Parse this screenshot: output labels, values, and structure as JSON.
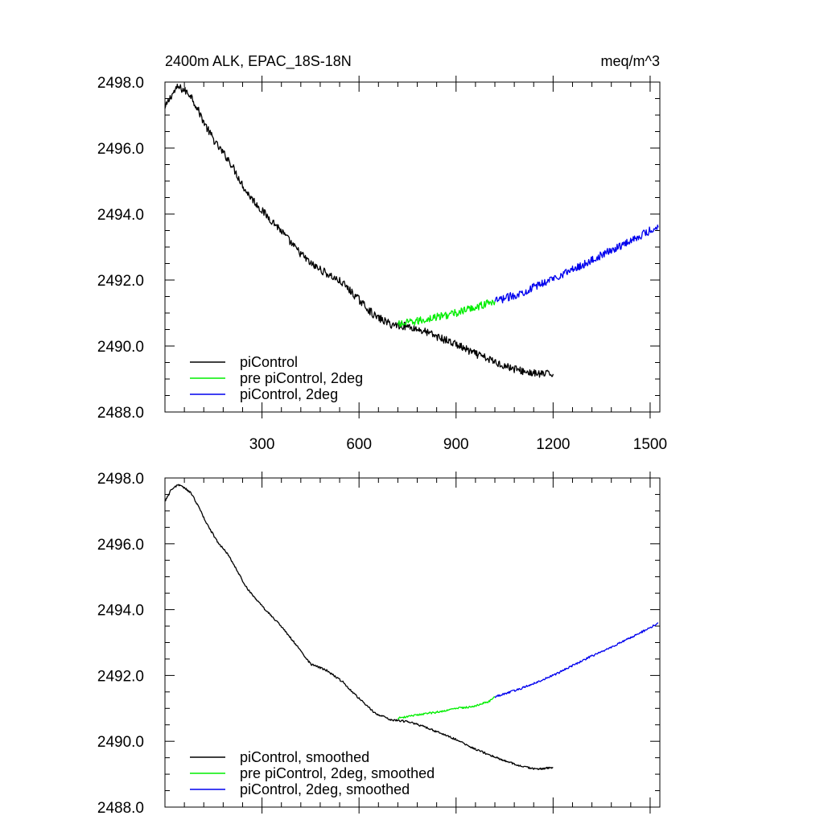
{
  "title_left": "2400m ALK, EPAC_18S-18N",
  "title_right": "meq/m^3",
  "colors": {
    "black": "#000000",
    "green": "#00ee00",
    "blue": "#0000ee"
  },
  "chart_data": [
    {
      "type": "line",
      "panel": "top",
      "xlim": [
        0,
        1530
      ],
      "ylim": [
        2488.0,
        2498.0
      ],
      "xticks": [
        300,
        600,
        900,
        1200,
        1500
      ],
      "xtick_labels": [
        "300",
        "600",
        "900",
        "1200",
        "1500"
      ],
      "yticks": [
        2488.0,
        2490.0,
        2492.0,
        2494.0,
        2496.0,
        2498.0
      ],
      "ytick_labels": [
        "2488.0",
        "2490.0",
        "2492.0",
        "2494.0",
        "2496.0",
        "2498.0"
      ],
      "noise": 0.12,
      "series": [
        {
          "name": "piControl",
          "color": "#000000",
          "points": [
            [
              0,
              2497.2
            ],
            [
              20,
              2497.6
            ],
            [
              40,
              2497.85
            ],
            [
              60,
              2497.75
            ],
            [
              80,
              2497.6
            ],
            [
              100,
              2497.2
            ],
            [
              130,
              2496.6
            ],
            [
              160,
              2496.1
            ],
            [
              200,
              2495.6
            ],
            [
              250,
              2494.7
            ],
            [
              300,
              2494.1
            ],
            [
              350,
              2493.6
            ],
            [
              400,
              2493.0
            ],
            [
              450,
              2492.5
            ],
            [
              500,
              2492.2
            ],
            [
              550,
              2491.9
            ],
            [
              600,
              2491.4
            ],
            [
              650,
              2490.9
            ],
            [
              700,
              2490.65
            ],
            [
              750,
              2490.6
            ],
            [
              800,
              2490.45
            ],
            [
              850,
              2490.25
            ],
            [
              900,
              2490.05
            ],
            [
              950,
              2489.8
            ],
            [
              1000,
              2489.6
            ],
            [
              1050,
              2489.4
            ],
            [
              1100,
              2489.25
            ],
            [
              1150,
              2489.15
            ],
            [
              1200,
              2489.15
            ]
          ]
        },
        {
          "name": "pre piControl, 2deg",
          "color": "#00ee00",
          "points": [
            [
              720,
              2490.65
            ],
            [
              780,
              2490.75
            ],
            [
              850,
              2490.9
            ],
            [
              900,
              2491.0
            ],
            [
              950,
              2491.15
            ],
            [
              1000,
              2491.3
            ],
            [
              1020,
              2491.35
            ]
          ]
        },
        {
          "name": "piControl, 2deg",
          "color": "#0000ee",
          "points": [
            [
              1020,
              2491.35
            ],
            [
              1100,
              2491.6
            ],
            [
              1200,
              2492.05
            ],
            [
              1300,
              2492.5
            ],
            [
              1400,
              2493.0
            ],
            [
              1500,
              2493.5
            ],
            [
              1525,
              2493.6
            ]
          ]
        }
      ],
      "legend": [
        "piControl",
        "pre piControl, 2deg",
        "piControl, 2deg"
      ],
      "legend_position": "bottom-left"
    },
    {
      "type": "line",
      "panel": "bottom",
      "xlim": [
        0,
        1530
      ],
      "ylim": [
        2488.0,
        2498.0
      ],
      "xticks": [
        300,
        600,
        900,
        1200,
        1500
      ],
      "yticks": [
        2488.0,
        2490.0,
        2492.0,
        2494.0,
        2496.0,
        2498.0
      ],
      "ytick_labels": [
        "2488.0",
        "2490.0",
        "2492.0",
        "2494.0",
        "2496.0",
        "2498.0"
      ],
      "noise": 0.03,
      "series": [
        {
          "name": "piControl, smoothed",
          "color": "#000000",
          "points": [
            [
              0,
              2497.3
            ],
            [
              20,
              2497.65
            ],
            [
              40,
              2497.8
            ],
            [
              60,
              2497.7
            ],
            [
              80,
              2497.55
            ],
            [
              100,
              2497.2
            ],
            [
              130,
              2496.6
            ],
            [
              160,
              2496.1
            ],
            [
              200,
              2495.6
            ],
            [
              250,
              2494.7
            ],
            [
              300,
              2494.1
            ],
            [
              350,
              2493.6
            ],
            [
              400,
              2493.0
            ],
            [
              450,
              2492.35
            ],
            [
              500,
              2492.15
            ],
            [
              550,
              2491.8
            ],
            [
              600,
              2491.3
            ],
            [
              650,
              2490.85
            ],
            [
              700,
              2490.65
            ],
            [
              750,
              2490.6
            ],
            [
              800,
              2490.45
            ],
            [
              850,
              2490.25
            ],
            [
              900,
              2490.05
            ],
            [
              950,
              2489.8
            ],
            [
              1000,
              2489.6
            ],
            [
              1050,
              2489.4
            ],
            [
              1100,
              2489.25
            ],
            [
              1150,
              2489.15
            ],
            [
              1200,
              2489.2
            ]
          ]
        },
        {
          "name": "pre piControl, 2deg, smoothed",
          "color": "#00ee00",
          "points": [
            [
              720,
              2490.7
            ],
            [
              780,
              2490.8
            ],
            [
              850,
              2490.9
            ],
            [
              900,
              2491.0
            ],
            [
              950,
              2491.05
            ],
            [
              1000,
              2491.2
            ],
            [
              1020,
              2491.35
            ]
          ]
        },
        {
          "name": "piControl, 2deg, smoothed",
          "color": "#0000ee",
          "points": [
            [
              1020,
              2491.35
            ],
            [
              1100,
              2491.6
            ],
            [
              1200,
              2492.0
            ],
            [
              1300,
              2492.5
            ],
            [
              1400,
              2492.95
            ],
            [
              1500,
              2493.45
            ],
            [
              1525,
              2493.6
            ]
          ]
        }
      ],
      "legend": [
        "piControl, smoothed",
        "pre piControl, 2deg, smoothed",
        "piControl, 2deg, smoothed"
      ],
      "legend_position": "bottom-left"
    }
  ]
}
